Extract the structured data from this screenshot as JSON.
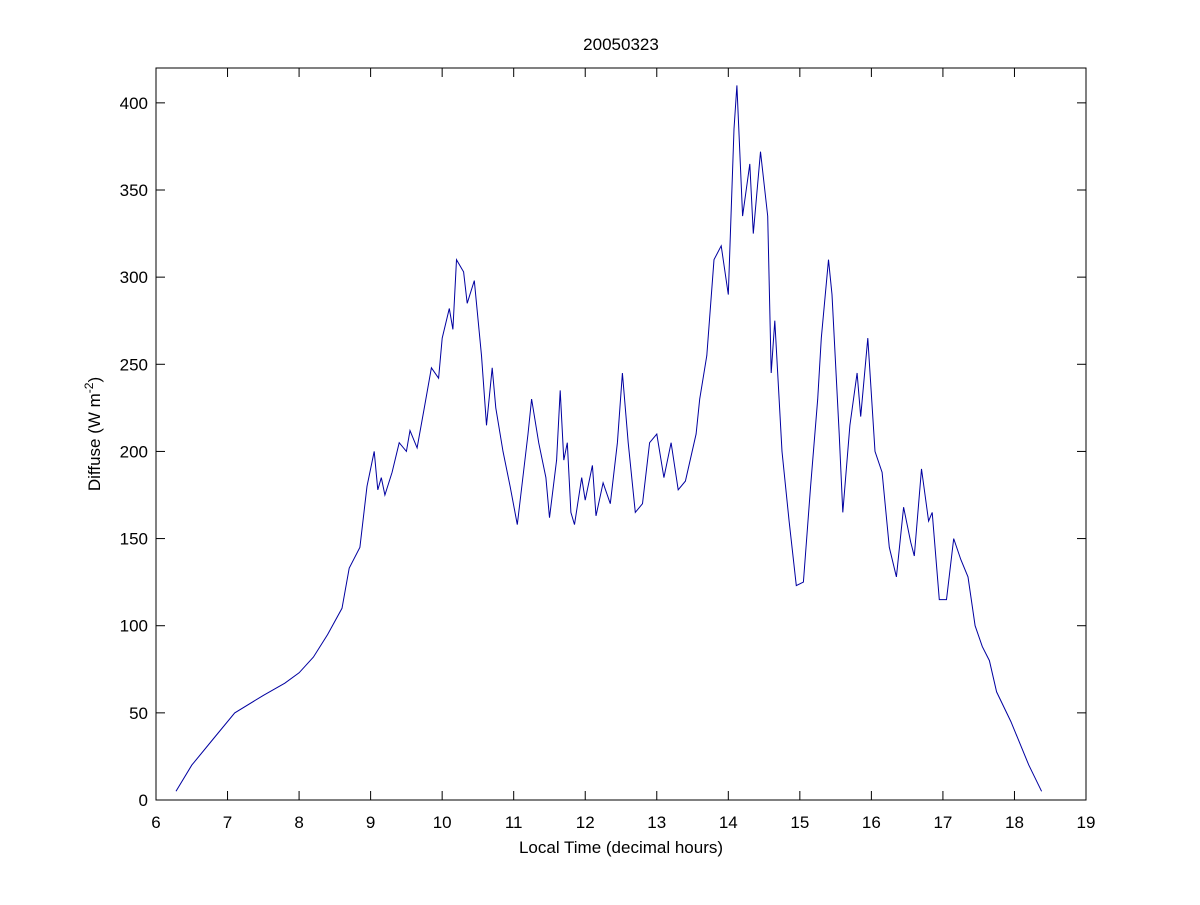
{
  "chart_data": {
    "type": "line",
    "title": "20050323",
    "xlabel": "Local Time (decimal hours)",
    "ylabel_parts": [
      "Diffuse (W m",
      "-2",
      ")"
    ],
    "xlim": [
      6,
      19
    ],
    "ylim": [
      0,
      420
    ],
    "xticks": [
      6,
      7,
      8,
      9,
      10,
      11,
      12,
      13,
      14,
      15,
      16,
      17,
      18,
      19
    ],
    "yticks": [
      0,
      50,
      100,
      150,
      200,
      250,
      300,
      350,
      400
    ],
    "grid": false,
    "series": [
      {
        "color": "#0000a0",
        "x": [
          6.28,
          6.5,
          6.8,
          7.1,
          7.5,
          7.8,
          8.0,
          8.2,
          8.4,
          8.6,
          8.7,
          8.85,
          8.95,
          9.0,
          9.05,
          9.1,
          9.15,
          9.2,
          9.3,
          9.4,
          9.5,
          9.55,
          9.65,
          9.75,
          9.85,
          9.95,
          10.0,
          10.1,
          10.15,
          10.2,
          10.3,
          10.35,
          10.45,
          10.55,
          10.62,
          10.7,
          10.75,
          10.85,
          10.95,
          11.05,
          11.1,
          11.2,
          11.25,
          11.35,
          11.45,
          11.5,
          11.6,
          11.65,
          11.7,
          11.75,
          11.8,
          11.85,
          11.95,
          12.0,
          12.1,
          12.15,
          12.25,
          12.35,
          12.45,
          12.52,
          12.6,
          12.7,
          12.8,
          12.9,
          13.0,
          13.1,
          13.2,
          13.3,
          13.4,
          13.55,
          13.6,
          13.7,
          13.8,
          13.9,
          14.0,
          14.08,
          14.12,
          14.2,
          14.3,
          14.35,
          14.45,
          14.55,
          14.6,
          14.65,
          14.75,
          14.85,
          14.95,
          15.05,
          15.15,
          15.25,
          15.3,
          15.4,
          15.45,
          15.55,
          15.6,
          15.7,
          15.8,
          15.85,
          15.95,
          16.05,
          16.15,
          16.25,
          16.35,
          16.45,
          16.55,
          16.6,
          16.7,
          16.8,
          16.85,
          16.95,
          17.05,
          17.15,
          17.25,
          17.35,
          17.45,
          17.55,
          17.65,
          17.75,
          17.95,
          18.2,
          18.38
        ],
        "values": [
          5,
          20,
          35,
          50,
          60,
          67,
          73,
          82,
          95,
          110,
          133,
          145,
          180,
          190,
          200,
          178,
          185,
          175,
          188,
          205,
          200,
          212,
          202,
          225,
          248,
          242,
          265,
          282,
          270,
          310,
          303,
          285,
          298,
          255,
          215,
          248,
          225,
          200,
          180,
          158,
          175,
          210,
          230,
          205,
          185,
          162,
          195,
          235,
          195,
          205,
          165,
          158,
          185,
          172,
          192,
          163,
          182,
          170,
          205,
          245,
          205,
          165,
          170,
          205,
          210,
          185,
          205,
          178,
          183,
          210,
          230,
          255,
          310,
          318,
          290,
          385,
          410,
          335,
          365,
          325,
          372,
          335,
          245,
          275,
          200,
          160,
          123,
          125,
          180,
          230,
          265,
          310,
          290,
          210,
          165,
          215,
          245,
          220,
          265,
          200,
          188,
          145,
          128,
          168,
          148,
          140,
          190,
          160,
          165,
          115,
          115,
          150,
          138,
          128,
          100,
          88,
          80,
          62,
          45,
          20,
          5
        ]
      }
    ]
  }
}
